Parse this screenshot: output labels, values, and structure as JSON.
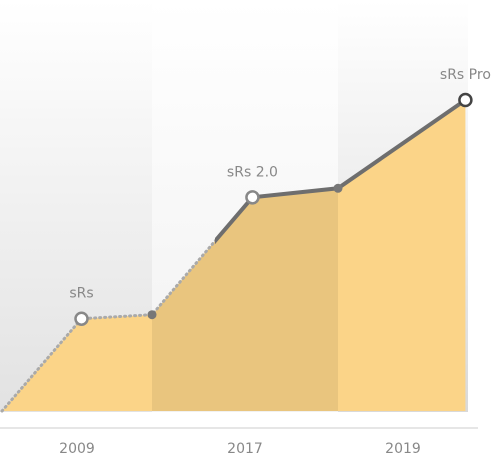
{
  "chart_data": {
    "type": "area",
    "categories": [
      "2009",
      "2017",
      "2019"
    ],
    "x": [
      0,
      0.53,
      1,
      1.54,
      2,
      2.98
    ],
    "values": [
      0,
      92,
      96,
      213,
      222,
      310
    ],
    "point_labels": [
      null,
      "sRs",
      null,
      "sRs 2.0",
      null,
      "sRs Pro"
    ],
    "color": "#fbd488"
  }
}
